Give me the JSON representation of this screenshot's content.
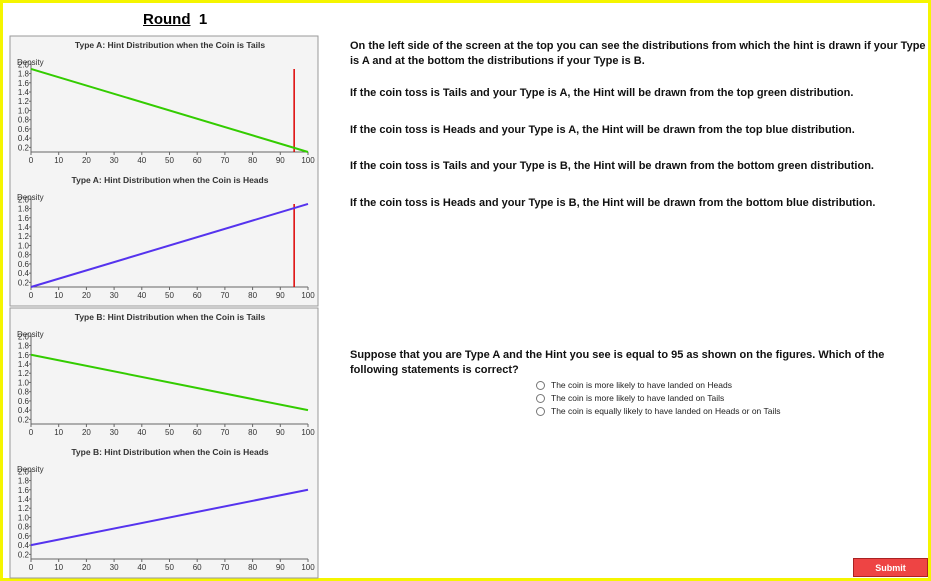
{
  "header": {
    "round_label": "Round",
    "round_number": "1"
  },
  "chart_data": [
    {
      "type": "line",
      "title": "Type A: Hint Distribution when the Coin is Tails",
      "y_label": "Density",
      "x": [
        0,
        100
      ],
      "series": [
        {
          "name": "Tails",
          "color": "#33cc00",
          "values": [
            1.9,
            0.1
          ]
        }
      ],
      "xlim": [
        0,
        100
      ],
      "ylim": [
        0.1,
        2.05
      ],
      "xticks": [
        0,
        10,
        20,
        30,
        40,
        50,
        60,
        70,
        80,
        90,
        100
      ],
      "yticks": [
        0.2,
        0.4,
        0.6,
        0.8,
        {
          "value": 1,
          "label": "1.0"
        },
        1.2,
        1.4,
        1.6,
        1.8,
        {
          "value": 2,
          "label": "2.0"
        }
      ],
      "hint": 95,
      "hint_color": "#dd0000"
    },
    {
      "type": "line",
      "title": "Type A: Hint Distribution when the Coin is Heads",
      "y_label": "Density",
      "x": [
        0,
        100
      ],
      "series": [
        {
          "name": "Heads",
          "color": "#5533ee",
          "values": [
            0.1,
            1.9
          ]
        }
      ],
      "xlim": [
        0,
        100
      ],
      "ylim": [
        0.1,
        2.05
      ],
      "xticks": [
        0,
        10,
        20,
        30,
        40,
        50,
        60,
        70,
        80,
        90,
        100
      ],
      "yticks": [
        0.2,
        0.4,
        0.6,
        0.8,
        {
          "value": 1,
          "label": "1.0"
        },
        1.2,
        1.4,
        1.6,
        1.8,
        {
          "value": 2,
          "label": "2.0"
        }
      ],
      "hint": 95,
      "hint_color": "#dd0000"
    },
    {
      "type": "line",
      "title": "Type B: Hint Distribution when the Coin is Tails",
      "y_label": "Density",
      "x": [
        0,
        100
      ],
      "series": [
        {
          "name": "Tails",
          "color": "#33cc00",
          "values": [
            1.6,
            0.4
          ]
        }
      ],
      "xlim": [
        0,
        100
      ],
      "ylim": [
        0.1,
        2.05
      ],
      "xticks": [
        0,
        10,
        20,
        30,
        40,
        50,
        60,
        70,
        80,
        90,
        100
      ],
      "yticks": [
        0.2,
        0.4,
        0.6,
        0.8,
        {
          "value": 1,
          "label": "1.0"
        },
        1.2,
        1.4,
        1.6,
        1.8,
        {
          "value": 2,
          "label": "2.0"
        }
      ]
    },
    {
      "type": "line",
      "title": "Type B: Hint Distribution when the Coin is Heads",
      "y_label": "Density",
      "x": [
        0,
        100
      ],
      "series": [
        {
          "name": "Heads",
          "color": "#5533ee",
          "values": [
            0.4,
            1.6
          ]
        }
      ],
      "xlim": [
        0,
        100
      ],
      "ylim": [
        0.1,
        2.05
      ],
      "xticks": [
        0,
        10,
        20,
        30,
        40,
        50,
        60,
        70,
        80,
        90,
        100
      ],
      "yticks": [
        0.2,
        0.4,
        0.6,
        0.8,
        {
          "value": 1,
          "label": "1.0"
        },
        1.2,
        1.4,
        1.6,
        1.8,
        {
          "value": 2,
          "label": "2.0"
        }
      ]
    }
  ],
  "instructions": [
    "On the left side of the screen at the top you can see the distributions from which the hint is drawn if your Type is A and at the bottom the distributions if your Type is B.",
    "If the coin toss is Tails and your Type is A, the Hint will be drawn from the top green distribution.",
    "If the coin toss is Heads and your Type is A, the Hint will be drawn from the top blue distribution.",
    "If the coin toss is Tails and your Type is B, the Hint will be drawn from the bottom green distribution.",
    "If the coin toss is Heads and your Type is B, the Hint will be drawn from the bottom blue distribution."
  ],
  "question": "Suppose that you are Type A and the Hint you see is equal to 95 as shown on the figures. Which of the following statements is correct?",
  "options": [
    "The coin is more likely to have landed on Heads",
    "The coin is more likely to have landed on Tails",
    "The coin is equally likely to have landed on Heads or on Tails"
  ],
  "submit": "Submit"
}
